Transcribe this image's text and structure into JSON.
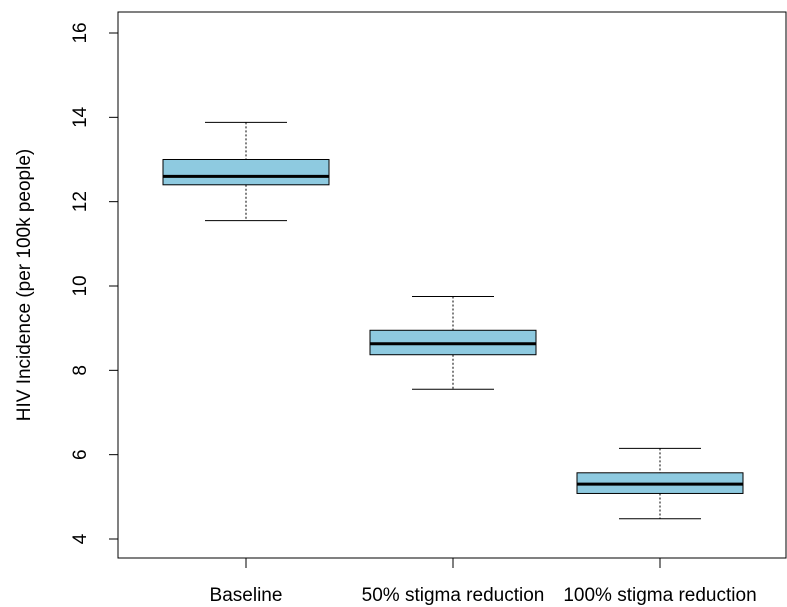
{
  "chart_data": {
    "type": "boxplot",
    "title": "",
    "xlabel": "",
    "ylabel": "HIV Incidence (per 100k people)",
    "ylim": [
      3.6,
      16.5
    ],
    "yticks": [
      4,
      6,
      8,
      10,
      12,
      14,
      16
    ],
    "categories": [
      "Baseline",
      "50% stigma reduction",
      "100% stigma reduction"
    ],
    "boxes": [
      {
        "whisker_low": 11.55,
        "q1": 12.4,
        "median": 12.6,
        "q3": 13.0,
        "whisker_high": 13.88
      },
      {
        "whisker_low": 7.55,
        "q1": 8.37,
        "median": 8.63,
        "q3": 8.95,
        "whisker_high": 9.75
      },
      {
        "whisker_low": 4.48,
        "q1": 5.08,
        "median": 5.3,
        "q3": 5.57,
        "whisker_high": 6.15
      }
    ],
    "box_color": "#8ECAE0",
    "grid": false
  }
}
